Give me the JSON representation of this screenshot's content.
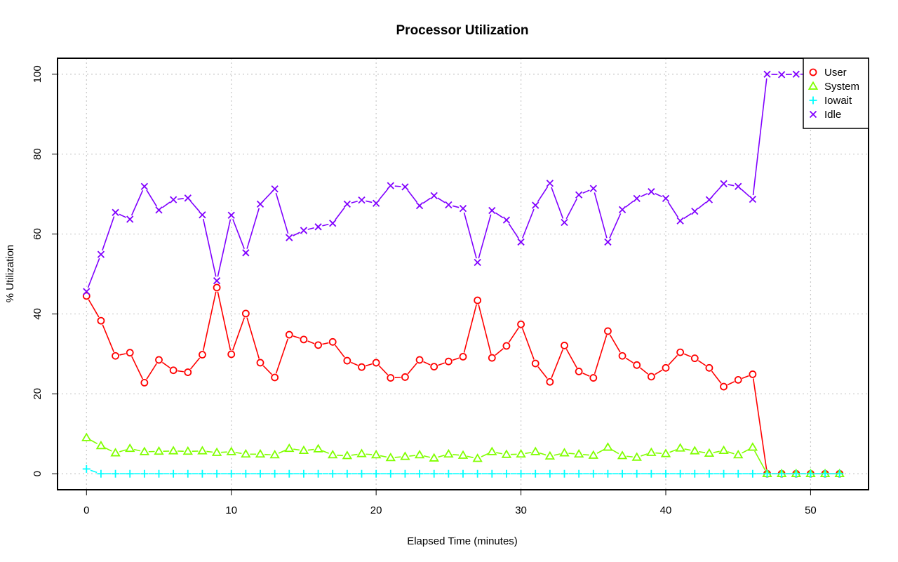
{
  "chart_data": {
    "type": "line",
    "title": "Processor Utilization",
    "xlabel": "Elapsed Time (minutes)",
    "ylabel": "% Utilization",
    "xlim": [
      -2,
      54
    ],
    "ylim": [
      -4,
      104
    ],
    "xticks": [
      0,
      10,
      20,
      30,
      40,
      50
    ],
    "yticks": [
      0,
      20,
      40,
      60,
      80,
      100
    ],
    "grid": true,
    "legend_position": "top-right",
    "x": [
      0,
      1,
      2,
      3,
      4,
      5,
      6,
      7,
      8,
      9,
      10,
      11,
      12,
      13,
      14,
      15,
      16,
      17,
      18,
      19,
      20,
      21,
      22,
      23,
      24,
      25,
      26,
      27,
      28,
      29,
      30,
      31,
      32,
      33,
      34,
      35,
      36,
      37,
      38,
      39,
      40,
      41,
      42,
      43,
      44,
      45,
      46,
      47,
      48,
      49,
      50,
      51,
      52
    ],
    "series": [
      {
        "name": "User",
        "color": "#ff0000",
        "marker": "circle",
        "values": [
          44.5,
          38.3,
          29.5,
          30.3,
          22.8,
          28.5,
          25.9,
          25.4,
          29.8,
          46.6,
          29.9,
          40.1,
          27.8,
          24.1,
          34.8,
          33.6,
          32.2,
          33.0,
          28.3,
          26.7,
          27.8,
          24.0,
          24.2,
          28.5,
          26.8,
          28.1,
          29.3,
          43.4,
          29.0,
          32.0,
          37.4,
          27.6,
          23.0,
          32.1,
          25.6,
          24.0,
          35.7,
          29.5,
          27.2,
          24.3,
          26.5,
          30.4,
          28.9,
          26.5,
          21.8,
          23.5,
          24.9,
          0,
          0,
          0,
          0,
          0,
          0
        ]
      },
      {
        "name": "System",
        "color": "#80ff00",
        "marker": "triangle",
        "values": [
          9.0,
          7.0,
          5.2,
          6.3,
          5.5,
          5.6,
          5.7,
          5.6,
          5.7,
          5.3,
          5.5,
          4.9,
          4.9,
          4.7,
          6.3,
          5.8,
          6.2,
          4.7,
          4.5,
          5.0,
          4.7,
          4.0,
          4.3,
          4.7,
          3.9,
          4.9,
          4.6,
          3.8,
          5.5,
          4.8,
          4.9,
          5.5,
          4.4,
          5.2,
          4.9,
          4.6,
          6.6,
          4.5,
          4.1,
          5.3,
          5.0,
          6.4,
          5.7,
          5.1,
          5.8,
          4.7,
          6.6,
          0,
          0,
          0,
          0,
          0,
          0
        ]
      },
      {
        "name": "Iowait",
        "color": "#00ffff",
        "marker": "plus",
        "values": [
          1.2,
          0,
          0,
          0,
          0,
          0,
          0,
          0,
          0,
          0,
          0,
          0,
          0,
          0,
          0,
          0,
          0,
          0,
          0,
          0,
          0,
          0,
          0,
          0,
          0,
          0,
          0,
          0,
          0,
          0,
          0,
          0,
          0,
          0,
          0,
          0,
          0,
          0,
          0,
          0,
          0,
          0,
          0,
          0,
          0,
          0,
          0,
          0,
          0,
          0,
          0,
          0,
          0
        ]
      },
      {
        "name": "Idle",
        "color": "#8000ff",
        "marker": "cross",
        "values": [
          45.6,
          54.9,
          65.4,
          63.7,
          71.9,
          66.0,
          68.6,
          69.0,
          64.8,
          48.3,
          64.7,
          55.3,
          67.5,
          71.3,
          59.1,
          60.9,
          61.8,
          62.7,
          67.5,
          68.5,
          67.7,
          72.1,
          71.8,
          67.1,
          69.6,
          67.3,
          66.4,
          52.9,
          65.9,
          63.5,
          58.0,
          67.2,
          72.7,
          62.9,
          69.8,
          71.4,
          58.0,
          66.1,
          68.9,
          70.6,
          68.9,
          63.3,
          65.7,
          68.6,
          72.6,
          71.9,
          68.7,
          100,
          99.9,
          100,
          100,
          100,
          100
        ]
      }
    ]
  }
}
